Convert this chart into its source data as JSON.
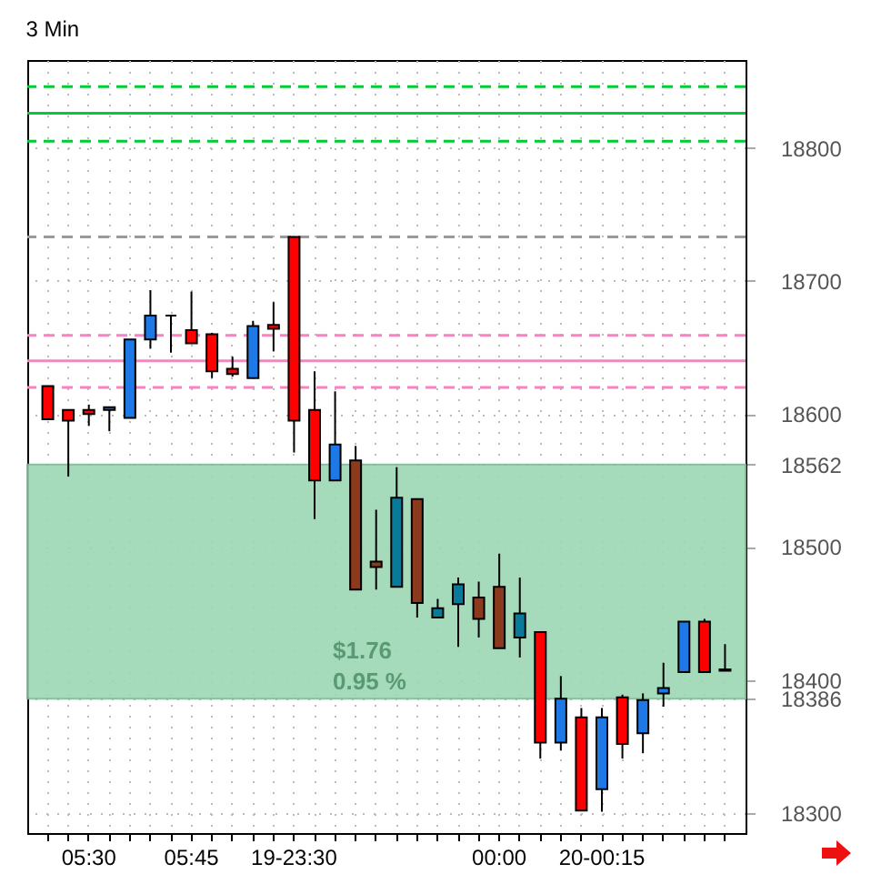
{
  "chart_data": {
    "type": "candlestick",
    "title": "3 Min",
    "categories": [
      null,
      null,
      "05:30",
      null,
      null,
      null,
      null,
      "05:45",
      null,
      null,
      null,
      null,
      "19-23:30",
      null,
      null,
      null,
      null,
      null,
      null,
      null,
      null,
      null,
      "00:00",
      null,
      null,
      null,
      null,
      "20-00:15",
      null,
      null,
      null,
      null,
      null,
      null
    ],
    "ohlc": [
      [
        18621,
        18621,
        18596,
        18596
      ],
      [
        18603,
        18603,
        18553,
        18595
      ],
      [
        18603,
        18607,
        18591,
        18600
      ],
      [
        18603,
        18605,
        18587,
        18605
      ],
      [
        18597,
        18656,
        18597,
        18656
      ],
      [
        18656,
        18693,
        18649,
        18674
      ],
      [
        18674,
        18674,
        18646,
        18674
      ],
      [
        18663,
        18692,
        18653,
        18653
      ],
      [
        18660,
        18661,
        18627,
        18632
      ],
      [
        18634,
        18643,
        18628,
        18630
      ],
      [
        18627,
        18670,
        18627,
        18666
      ],
      [
        18667,
        18684,
        18647,
        18664
      ],
      [
        18733,
        18733,
        18571,
        18595
      ],
      [
        18603,
        18632,
        18521,
        18550
      ],
      [
        18550,
        18617,
        18550,
        18577
      ],
      [
        18565,
        18576,
        18468,
        18468
      ],
      [
        18489,
        18528,
        18468,
        18485
      ],
      [
        18470,
        18560,
        18470,
        18537
      ],
      [
        18536,
        18536,
        18447,
        18458
      ],
      [
        18447,
        18461,
        18447,
        18454
      ],
      [
        18457,
        18477,
        18425,
        18472
      ],
      [
        18462,
        18474,
        18432,
        18446
      ],
      [
        18470,
        18495,
        18424,
        18424
      ],
      [
        18432,
        18477,
        18417,
        18450
      ],
      [
        18436,
        18436,
        18341,
        18353
      ],
      [
        18353,
        18403,
        18347,
        18386
      ],
      [
        18372,
        18379,
        18302,
        18302
      ],
      [
        18318,
        18379,
        18301,
        18372
      ],
      [
        18387,
        18389,
        18341,
        18352
      ],
      [
        18360,
        18390,
        18345,
        18385
      ],
      [
        18390,
        18413,
        18380,
        18394
      ],
      [
        18406,
        18444,
        18406,
        18444
      ],
      [
        18444,
        18446,
        18406,
        18406
      ],
      [
        18408,
        18427,
        18407,
        18407
      ]
    ],
    "colors": [
      "#ff0000",
      "#ff0000",
      "#ff0000",
      "#1e78e6",
      "#1e78e6",
      "#1e78e6",
      "#000000",
      "#ff0000",
      "#ff0000",
      "#ff0000",
      "#1e78e6",
      "#ff0000",
      "#ff0000",
      "#ff0000",
      "#1e78e6",
      "#8b3a1e",
      "#8b3a1e",
      "#0a7a9a",
      "#8b3a1e",
      "#0a7a9a",
      "#0a7a9a",
      "#8b3a1e",
      "#8b3a1e",
      "#0a7a9a",
      "#ff0000",
      "#1e78e6",
      "#ff0000",
      "#1e78e6",
      "#ff0000",
      "#1e78e6",
      "#1e78e6",
      "#1e78e6",
      "#ff0000",
      "#ff0000"
    ],
    "ylim": [
      18285,
      18866
    ],
    "yticks": [
      18300,
      18386,
      18400,
      18500,
      18562,
      18600,
      18700,
      18800
    ],
    "grid": true,
    "ref_lines": [
      {
        "axis": "y",
        "value": 18846,
        "color": "#00cc33",
        "line_style": "dashed"
      },
      {
        "axis": "y",
        "value": 18826,
        "color": "#00cc33",
        "line_style": "solid"
      },
      {
        "axis": "y",
        "value": 18805,
        "color": "#00cc33",
        "line_style": "dashed"
      },
      {
        "axis": "y",
        "value": 18733,
        "color": "#999999",
        "line_style": "dashed"
      },
      {
        "axis": "y",
        "value": 18659,
        "color": "#ff80c0",
        "line_style": "dashed"
      },
      {
        "axis": "y",
        "value": 18640,
        "color": "#ff80c0",
        "line_style": "solid"
      },
      {
        "axis": "y",
        "value": 18620,
        "color": "#ff80c0",
        "line_style": "dashed"
      }
    ],
    "bands": [
      {
        "axis": "y",
        "from": 18386,
        "to": 18562,
        "color": "#9cd8b4"
      }
    ],
    "annotations": [
      "$1.76",
      "0.95 %"
    ]
  }
}
